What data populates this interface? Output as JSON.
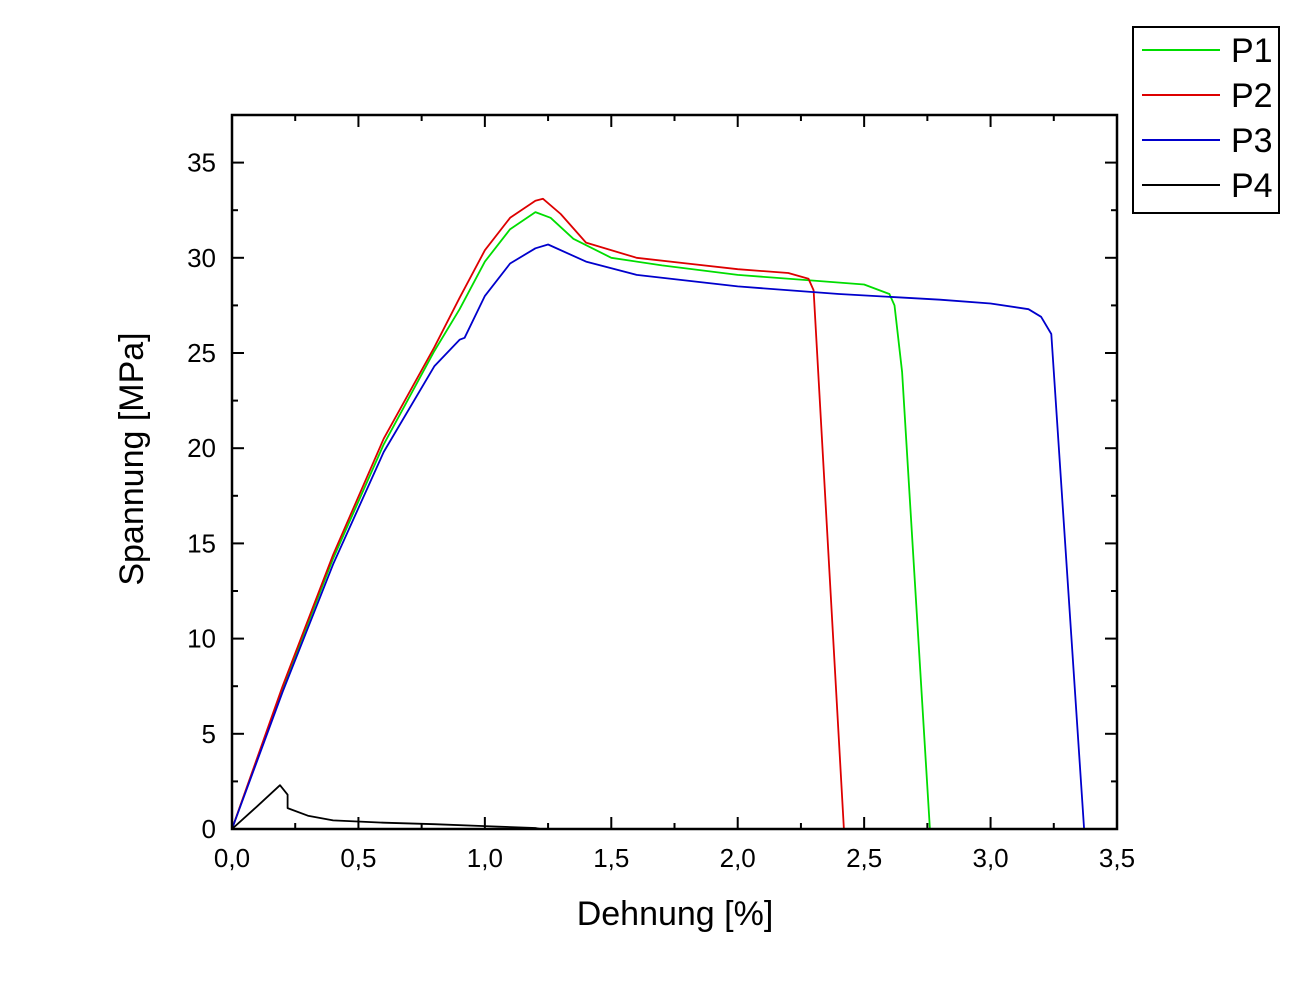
{
  "chart_data": {
    "type": "line",
    "title": "",
    "xlabel": "Dehnung [%]",
    "ylabel": "Spannung [MPa]",
    "xlim": [
      0,
      3.5
    ],
    "ylim": [
      0,
      37.5
    ],
    "x_ticks": [
      0,
      0.5,
      1.0,
      1.5,
      2.0,
      2.5,
      3.0,
      3.5
    ],
    "x_tick_labels": [
      "0,0",
      "0,5",
      "1,0",
      "1,5",
      "2,0",
      "2,5",
      "3,0",
      "3,5"
    ],
    "y_ticks": [
      0,
      5,
      10,
      15,
      20,
      25,
      30,
      35
    ],
    "y_tick_labels": [
      "0",
      "5",
      "10",
      "15",
      "20",
      "25",
      "30",
      "35"
    ],
    "grid": false,
    "legend_position": "top-right, outside plot",
    "series": [
      {
        "name": "P1",
        "color": "#00dd00",
        "x": [
          0,
          0.2,
          0.4,
          0.6,
          0.8,
          0.9,
          1.0,
          1.1,
          1.2,
          1.26,
          1.35,
          1.5,
          1.7,
          2.0,
          2.3,
          2.5,
          2.6,
          2.62,
          2.65,
          2.76
        ],
        "y": [
          0,
          7.4,
          14.2,
          20.2,
          25.1,
          27.3,
          29.8,
          31.5,
          32.4,
          32.1,
          31.0,
          30.0,
          29.6,
          29.1,
          28.8,
          28.6,
          28.1,
          27.5,
          24.0,
          0
        ]
      },
      {
        "name": "P2",
        "color": "#dd0000",
        "x": [
          0,
          0.2,
          0.4,
          0.6,
          0.8,
          0.9,
          1.0,
          1.1,
          1.2,
          1.23,
          1.3,
          1.4,
          1.6,
          1.8,
          2.0,
          2.2,
          2.28,
          2.3,
          2.42
        ],
        "y": [
          0,
          7.5,
          14.4,
          20.5,
          25.3,
          27.9,
          30.4,
          32.1,
          33.0,
          33.1,
          32.3,
          30.8,
          30.0,
          29.7,
          29.4,
          29.2,
          28.9,
          28.3,
          0
        ]
      },
      {
        "name": "P3",
        "color": "#0000cc",
        "x": [
          0,
          0.2,
          0.4,
          0.6,
          0.8,
          0.9,
          0.92,
          1.0,
          1.1,
          1.2,
          1.25,
          1.4,
          1.6,
          1.8,
          2.0,
          2.4,
          2.8,
          3.0,
          3.15,
          3.2,
          3.24,
          3.37
        ],
        "y": [
          0,
          7.2,
          13.9,
          19.8,
          24.3,
          25.7,
          25.8,
          28.0,
          29.7,
          30.5,
          30.7,
          29.8,
          29.1,
          28.8,
          28.5,
          28.1,
          27.8,
          27.6,
          27.3,
          26.9,
          26.0,
          0
        ]
      },
      {
        "name": "P4",
        "color": "#000000",
        "x": [
          0,
          0.1,
          0.19,
          0.22,
          0.22,
          0.3,
          0.4,
          0.6,
          0.8,
          1.0,
          1.2,
          1.22
        ],
        "y": [
          0,
          1.2,
          2.3,
          1.8,
          1.1,
          0.7,
          0.45,
          0.33,
          0.25,
          0.15,
          0.05,
          0
        ]
      }
    ]
  }
}
